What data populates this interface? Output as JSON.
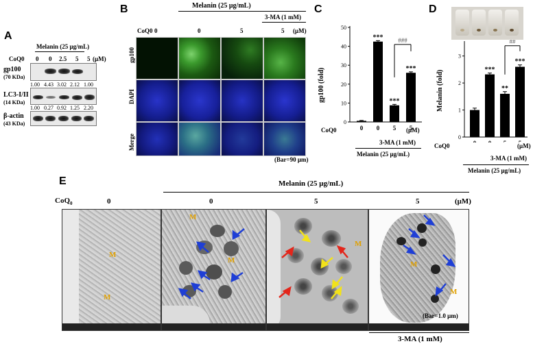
{
  "panel_a": {
    "letter": "A",
    "treatment": "Melanin (25 μg/mL)",
    "coq0_label": "CoQ0",
    "doses": [
      "0",
      "0",
      "2.5",
      "5",
      "5"
    ],
    "unit": "(μM)",
    "rows": [
      {
        "name": "gp100",
        "size": "(70 KDa)",
        "quant": [
          "1.00",
          "4.43",
          "3.02",
          "2.12",
          "1.00"
        ]
      },
      {
        "name": "LC3-I/II",
        "size": "(14 KDa)",
        "quant": [
          "1.00",
          "0.27",
          "0.92",
          "1.25",
          "2.20"
        ]
      },
      {
        "name": "β-actin",
        "size": "(43 KDa)",
        "quant": []
      }
    ]
  },
  "panel_b": {
    "letter": "B",
    "treatment": "Melanin (25 μg/mL)",
    "inhibitor": "3-MA (1 mM)",
    "coq0_label": "CoQ0",
    "doses": [
      "0",
      "0",
      "5",
      "5"
    ],
    "unit": "(μM)",
    "rows": [
      "gp100",
      "DAPI",
      "Merge"
    ],
    "scale": "(Bar=90 μm)"
  },
  "panel_c": {
    "letter": "C",
    "ylabel": "gp100 (fold)",
    "coq0_label": "CoQ0",
    "inhibitor": "3-MA (1 mM)",
    "treatment": "Melanin (25 μg/mL)",
    "unit": "(μM)",
    "hash": "###",
    "ytick_labels": [
      "0",
      "10",
      "20",
      "30",
      "40",
      "50"
    ]
  },
  "panel_d": {
    "letter": "D",
    "ylabel": "Melanin (fold)",
    "coq0_label": "CoQ0",
    "inhibitor": "3-MA (1 mM)",
    "treatment": "Melanin (25 μg/mL)",
    "unit": "(μM)",
    "hash": "##",
    "ytick_labels": [
      "0",
      "1",
      "2",
      "3"
    ]
  },
  "panel_e": {
    "letter": "E",
    "treatment": "Melanin (25 μg/mL)",
    "coq0_label": "CoQ",
    "coq0_sub": "0",
    "doses": [
      "0",
      "0",
      "5",
      "5"
    ],
    "unit": "(μM)",
    "inhibitor": "3-MA (1 mM)",
    "scale": "(Bar=1.0 μm)",
    "marker": "M"
  },
  "chart_data": [
    {
      "type": "bar",
      "panel": "C",
      "categories": [
        "0",
        "0",
        "5",
        "5"
      ],
      "values": [
        0.6,
        42.5,
        8.8,
        26.0
      ],
      "errors": [
        0.2,
        0.5,
        0.5,
        0.5
      ],
      "significance": [
        "",
        "***",
        "***",
        "***"
      ],
      "ylabel": "gp100 (fold)",
      "ylim": [
        0,
        50
      ],
      "yticks": [
        0,
        10,
        20,
        30,
        40,
        50
      ]
    },
    {
      "type": "bar",
      "panel": "D",
      "categories": [
        "0",
        "0",
        "5",
        "5"
      ],
      "values": [
        1.0,
        2.32,
        1.6,
        2.6
      ],
      "errors": [
        0.07,
        0.05,
        0.08,
        0.07
      ],
      "significance": [
        "",
        "***",
        "**",
        "***"
      ],
      "ylabel": "Melanin (fold)",
      "ylim": [
        0,
        3.5
      ],
      "yticks": [
        0,
        1,
        2,
        3
      ]
    }
  ]
}
